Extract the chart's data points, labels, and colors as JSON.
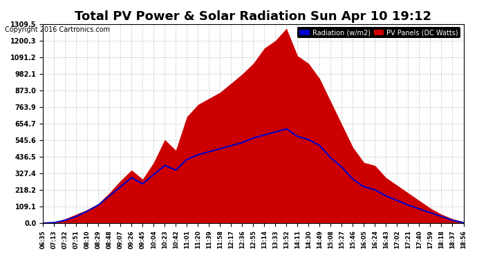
{
  "title": "Total PV Power & Solar Radiation Sun Apr 10 19:12",
  "copyright": "Copyright 2016 Cartronics.com",
  "legend_labels": [
    "Radiation (w/m2)",
    "PV Panels (DC Watts)"
  ],
  "legend_colors": [
    "#0000cc",
    "#cc0000"
  ],
  "bg_color": "#ffffff",
  "plot_bg_color": "#ffffff",
  "grid_color": "#aaaaaa",
  "ymin": 0.0,
  "ymax": 1309.5,
  "yticks": [
    0.0,
    109.1,
    218.2,
    327.4,
    436.5,
    545.6,
    654.7,
    763.9,
    873.0,
    982.1,
    1091.2,
    1200.3,
    1309.5
  ],
  "x_labels": [
    "06:35",
    "07:13",
    "07:32",
    "07:51",
    "08:10",
    "08:29",
    "08:48",
    "09:07",
    "09:26",
    "09:45",
    "10:04",
    "10:23",
    "10:42",
    "11:01",
    "11:20",
    "11:39",
    "11:58",
    "12:17",
    "12:36",
    "12:55",
    "13:14",
    "13:33",
    "13:52",
    "14:11",
    "14:30",
    "14:49",
    "15:08",
    "15:27",
    "15:46",
    "16:05",
    "16:24",
    "16:43",
    "17:02",
    "17:21",
    "17:40",
    "17:59",
    "18:18",
    "18:37",
    "18:56"
  ],
  "pv_data": [
    5,
    8,
    30,
    60,
    90,
    130,
    200,
    280,
    350,
    290,
    400,
    550,
    480,
    700,
    780,
    820,
    860,
    920,
    980,
    1050,
    1150,
    1200,
    1280,
    1100,
    1050,
    950,
    800,
    650,
    500,
    400,
    380,
    300,
    250,
    200,
    150,
    100,
    60,
    30,
    10
  ],
  "radiation_data": [
    2,
    5,
    20,
    45,
    80,
    120,
    180,
    240,
    300,
    260,
    320,
    380,
    350,
    420,
    450,
    470,
    490,
    510,
    530,
    560,
    580,
    600,
    620,
    570,
    550,
    510,
    430,
    370,
    290,
    240,
    220,
    180,
    150,
    120,
    95,
    70,
    45,
    20,
    5
  ],
  "pv_color": "#cc0000",
  "radiation_color": "#0000cc",
  "fill_alpha": 1.0,
  "line_width": 1.5
}
